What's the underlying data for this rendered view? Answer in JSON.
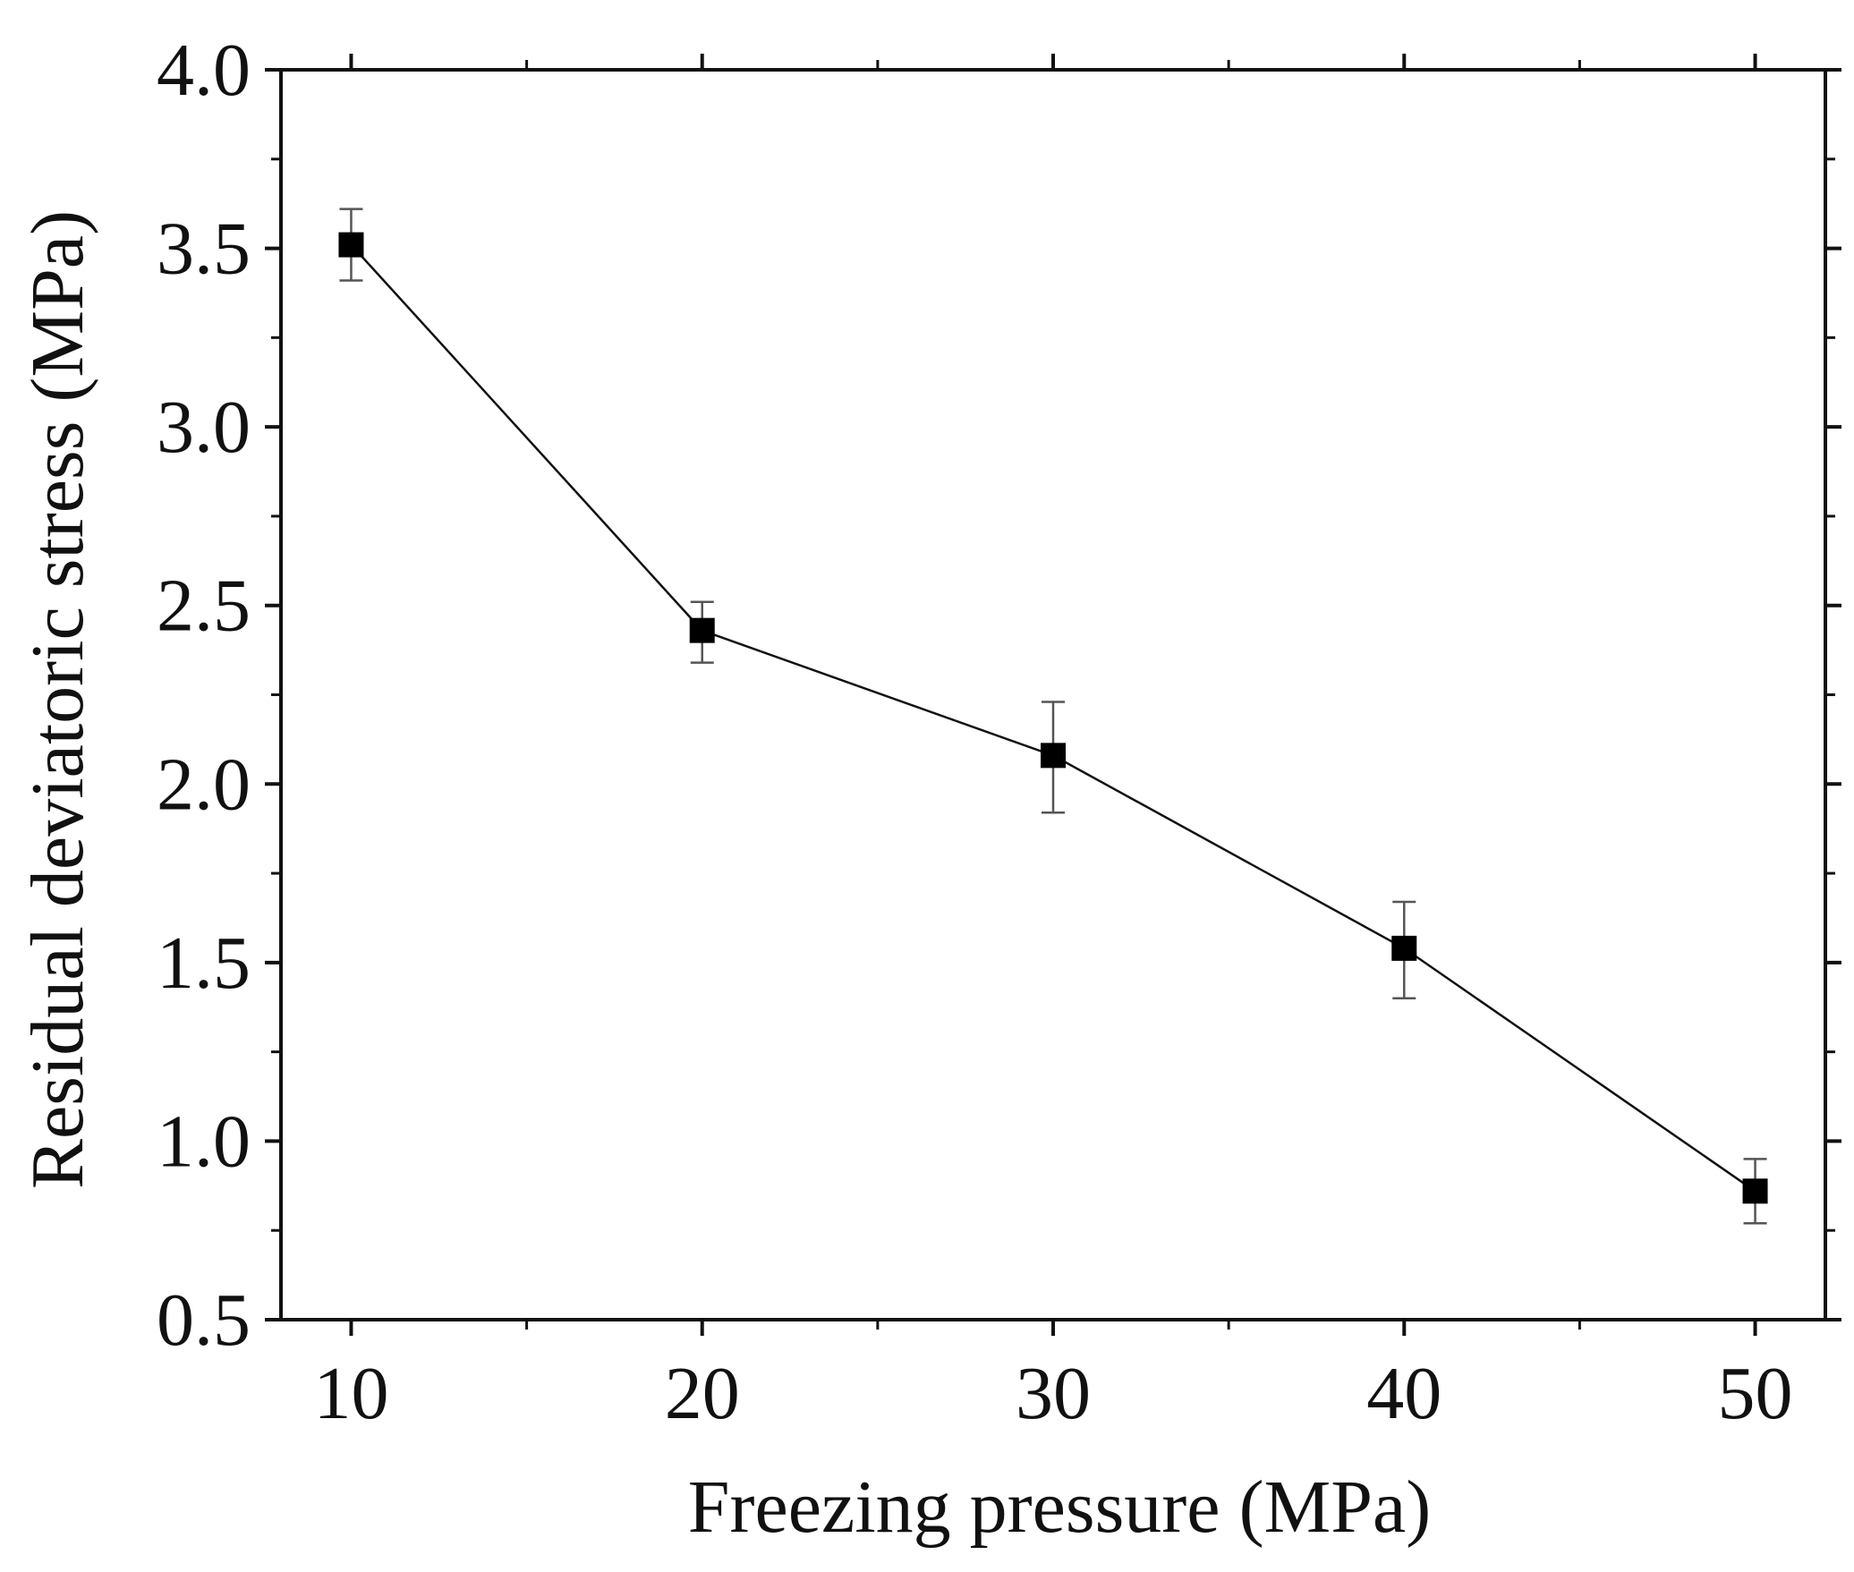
{
  "chart_data": {
    "type": "line",
    "title": "",
    "xlabel": "Freezing pressure (MPa)",
    "ylabel": "Residual deviatoric stress (MPa)",
    "xlim": [
      8,
      52
    ],
    "ylim": [
      0.5,
      4.0
    ],
    "xticks": [
      10,
      20,
      30,
      40,
      50
    ],
    "xtick_labels": [
      "10",
      "20",
      "30",
      "40",
      "50"
    ],
    "yticks": [
      0.5,
      1.0,
      1.5,
      2.0,
      2.5,
      3.0,
      3.5,
      4.0
    ],
    "ytick_labels": [
      "0.5",
      "1.0",
      "1.5",
      "2.0",
      "2.5",
      "3.0",
      "3.5",
      "4.0"
    ],
    "grid": false,
    "marker": "square",
    "series": [
      {
        "name": "Residual deviatoric stress",
        "x": [
          10,
          20,
          30,
          40,
          50
        ],
        "values": [
          3.51,
          2.43,
          2.08,
          1.54,
          0.86
        ],
        "error_low": [
          3.41,
          2.34,
          1.92,
          1.4,
          0.77
        ],
        "error_high": [
          3.61,
          2.51,
          2.23,
          1.67,
          0.95
        ]
      }
    ],
    "colors": {
      "line": "#111111",
      "marker": "#000000",
      "axis": "#111111",
      "errorbar": "#555555"
    }
  }
}
